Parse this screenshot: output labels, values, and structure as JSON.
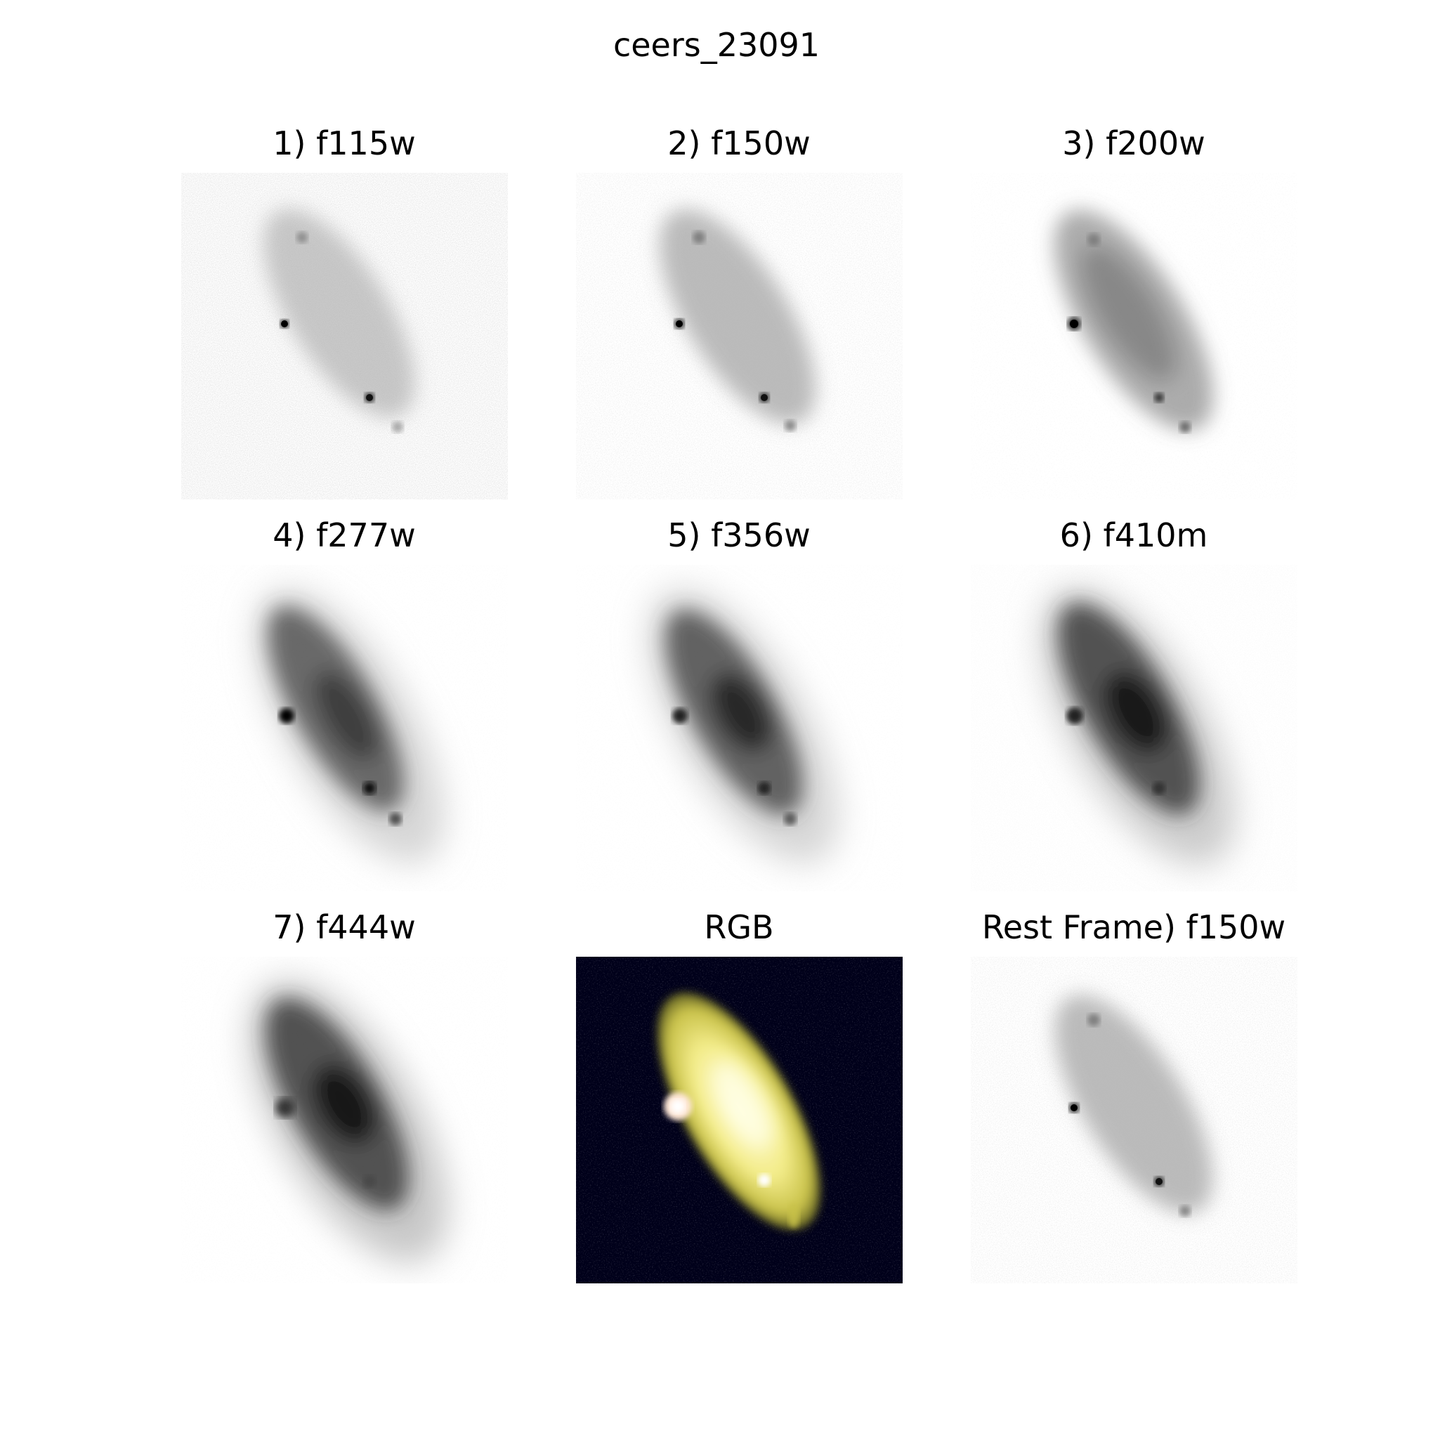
{
  "figure": {
    "title": "ceers_23091"
  },
  "panels": [
    {
      "label": "1) f115w",
      "kind": "grayscale"
    },
    {
      "label": "2) f150w",
      "kind": "grayscale"
    },
    {
      "label": "3) f200w",
      "kind": "grayscale"
    },
    {
      "label": "4) f277w",
      "kind": "grayscale"
    },
    {
      "label": "5) f356w",
      "kind": "grayscale"
    },
    {
      "label": "6) f410m",
      "kind": "grayscale"
    },
    {
      "label": "7) f444w",
      "kind": "grayscale"
    },
    {
      "label": "RGB",
      "kind": "color"
    },
    {
      "label": "Rest Frame) f150w",
      "kind": "grayscale"
    }
  ],
  "colors": {
    "background": "#ffffff",
    "rgb_background": "#00001a",
    "galaxy_core_rgb": "#fffbb0"
  }
}
